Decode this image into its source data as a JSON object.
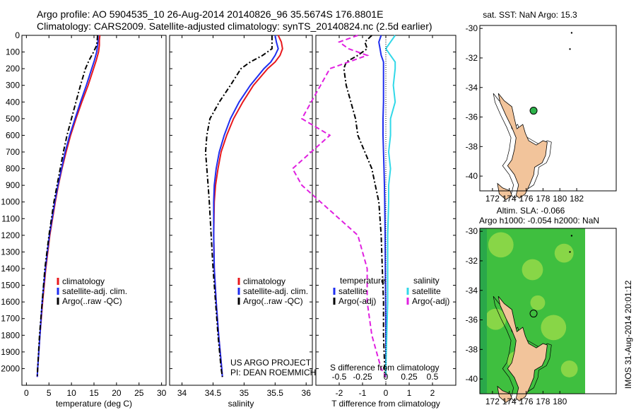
{
  "header": {
    "line1": "Argo profile: AO 5904535_10 26-Aug-2014 20140826_96 35.5674S 176.8801E",
    "line2": "Climatology: CARS2009. Satellite-adjusted climatology: synTS_20140824.nc (2.5d earlier)"
  },
  "colors": {
    "climatology": "#e8181c",
    "satellite": "#1f2ef0",
    "argo": "#000000",
    "sal_satellite": "#31d8e8",
    "sal_argo": "#e020e0",
    "land": "#f2c49b"
  },
  "chart_data": [
    {
      "type": "line",
      "name": "temperature-profile",
      "xlabel": "temperature (deg C)",
      "xlim": [
        -1,
        31
      ],
      "ylim": [
        2100,
        0
      ],
      "xticks": [
        "0",
        "5",
        "10",
        "15",
        "20",
        "25",
        "30"
      ],
      "yticks": [
        "0",
        "100",
        "200",
        "300",
        "400",
        "500",
        "600",
        "700",
        "800",
        "900",
        "1000",
        "1100",
        "1200",
        "1300",
        "1400",
        "1500",
        "1600",
        "1700",
        "1800",
        "1900",
        "2000"
      ],
      "legend": [
        "climatology",
        "satellite-adj. clim.",
        "Argo(..raw -QC)"
      ],
      "depth": [
        0,
        30,
        60,
        100,
        150,
        200,
        300,
        400,
        500,
        600,
        700,
        800,
        900,
        1000,
        1200,
        1400,
        1600,
        1800,
        2000,
        2050
      ],
      "series": [
        {
          "name": "climatology",
          "values": [
            16.3,
            16.2,
            16.2,
            16.0,
            15.5,
            14.9,
            13.7,
            12.3,
            11.0,
            9.8,
            8.8,
            7.9,
            7.1,
            6.4,
            5.2,
            4.3,
            3.6,
            3.0,
            2.5,
            2.4
          ]
        },
        {
          "name": "satellite-adj. clim.",
          "values": [
            15.9,
            15.9,
            15.8,
            15.6,
            15.1,
            14.5,
            13.3,
            12.0,
            10.8,
            9.6,
            8.6,
            7.8,
            7.0,
            6.3,
            5.1,
            4.2,
            3.5,
            3.0,
            2.5,
            2.4
          ]
        },
        {
          "name": "Argo(..raw -QC)",
          "values": [
            15.8,
            15.7,
            15.6,
            14.9,
            13.9,
            13.1,
            12.0,
            11.0,
            10.0,
            9.0,
            8.2,
            7.5,
            6.8,
            6.1,
            5.0,
            4.1,
            3.5,
            2.9,
            2.5,
            2.4
          ]
        }
      ]
    },
    {
      "type": "line",
      "name": "salinity-profile",
      "xlabel": "salinity",
      "xlim": [
        33.8,
        36.1
      ],
      "ylim": [
        2100,
        0
      ],
      "xticks": [
        "34",
        "34.5",
        "35",
        "35.5",
        "36"
      ],
      "legend": [
        "climatology",
        "satellite-adj. clim.",
        "Argo(..raw -QC)"
      ],
      "notes": [
        "US ARGO PROJECT",
        "PI: DEAN ROEMMICH"
      ],
      "depth": [
        0,
        40,
        80,
        120,
        160,
        200,
        300,
        400,
        500,
        600,
        700,
        800,
        900,
        1000,
        1200,
        1400,
        1600,
        1800,
        2000,
        2050
      ],
      "series": [
        {
          "name": "climatology",
          "values": [
            35.55,
            35.6,
            35.62,
            35.58,
            35.5,
            35.38,
            35.15,
            34.98,
            34.83,
            34.72,
            34.63,
            34.58,
            34.54,
            34.52,
            34.51,
            34.52,
            34.55,
            34.59,
            34.64,
            34.65
          ]
        },
        {
          "name": "satellite-adj. clim.",
          "values": [
            35.5,
            35.52,
            35.55,
            35.5,
            35.43,
            35.32,
            35.1,
            34.92,
            34.78,
            34.68,
            34.6,
            34.55,
            34.52,
            34.51,
            34.51,
            34.52,
            34.55,
            34.59,
            34.64,
            34.65
          ]
        },
        {
          "name": "Argo(..raw -QC)",
          "values": [
            35.45,
            35.45,
            35.45,
            35.3,
            35.1,
            34.95,
            34.78,
            34.6,
            34.45,
            34.4,
            34.38,
            34.4,
            34.42,
            34.44,
            34.47,
            34.5,
            34.54,
            34.58,
            34.63,
            34.65
          ]
        }
      ]
    },
    {
      "type": "line",
      "name": "difference-profile",
      "xlabel": "T difference from climatology",
      "xlabel_top": "S difference from climatology",
      "xlim": [
        -3,
        3
      ],
      "ylim": [
        2100,
        0
      ],
      "xticks": [
        "-2",
        "-1",
        "0",
        "1",
        "2"
      ],
      "xticks_top": [
        "-0.5",
        "-0.25",
        "0",
        "0.25",
        "0.5"
      ],
      "legend_left_title": "temperature",
      "legend_right_title": "salinity",
      "legend": [
        "satellite",
        "Argo(-adj)",
        "satellite",
        "Argo(-adj)"
      ],
      "depth": [
        0,
        40,
        80,
        120,
        160,
        200,
        300,
        400,
        500,
        600,
        700,
        800,
        900,
        1000,
        1200,
        1400,
        1600,
        1800,
        2000,
        2050
      ],
      "series": [
        {
          "name": "temperature satellite",
          "values": [
            -0.2,
            -0.3,
            -0.25,
            -0.2,
            -0.1,
            -0.1,
            -0.1,
            -0.1,
            -0.12,
            -0.12,
            -0.1,
            -0.08,
            -0.06,
            -0.05,
            -0.03,
            -0.02,
            -0.01,
            0,
            0,
            0
          ]
        },
        {
          "name": "temperature Argo(-adj)",
          "values": [
            -0.6,
            -0.9,
            -0.8,
            -1.2,
            -1.7,
            -1.8,
            -1.7,
            -1.5,
            -1.3,
            -1.2,
            -0.9,
            -0.6,
            -0.45,
            -0.3,
            -0.2,
            -0.15,
            -0.1,
            -0.1,
            -0.05,
            -0.05
          ]
        },
        {
          "name": "salinity satellite",
          "values": [
            0.1,
            0.05,
            0,
            0.05,
            0.1,
            0.1,
            0.08,
            0.1,
            0.05,
            0.05,
            0.03,
            0.05,
            0.03,
            0.03,
            0.02,
            0.02,
            0.02,
            0.01,
            0,
            0
          ]
        },
        {
          "name": "salinity Argo(-adj)",
          "values": [
            -0.3,
            -0.5,
            -0.4,
            -0.2,
            -0.4,
            -0.6,
            -0.7,
            -0.8,
            -0.9,
            -0.6,
            -0.8,
            -1.0,
            -0.9,
            -0.7,
            -0.3,
            -0.2,
            -0.2,
            -0.15,
            -0.05,
            0
          ]
        }
      ]
    },
    {
      "type": "map",
      "name": "sst-map",
      "title": "sat. SST: NaN Argo: 15.3",
      "xlim": [
        170.5,
        183
      ],
      "ylim": [
        -41,
        -29.8
      ],
      "xticks": [
        "172",
        "174",
        "176",
        "178",
        "180",
        "182"
      ],
      "yticks": [
        "-30",
        "-32",
        "-34",
        "-36",
        "-38",
        "-40"
      ],
      "float_position": {
        "lon": 176.88,
        "lat": -35.57
      }
    },
    {
      "type": "map",
      "name": "sla-map",
      "title_line1": "Altim. SLA: -0.066",
      "title_line2": "Argo h1000: -0.054 h2000: NaN",
      "xlim": [
        170.5,
        183
      ],
      "ylim": [
        -41,
        -29.8
      ],
      "xticks": [
        "172",
        "174",
        "176",
        "178",
        "180"
      ],
      "yticks": [
        "-30",
        "-32",
        "-34",
        "-36",
        "-38",
        "-40"
      ],
      "float_position": {
        "lon": 176.88,
        "lat": -35.57
      }
    }
  ],
  "footer": {
    "stamp": "IMOS 31-Aug-2014 20:01:12"
  }
}
